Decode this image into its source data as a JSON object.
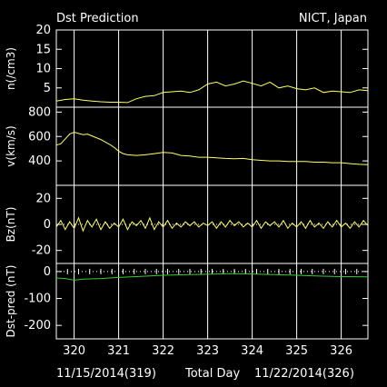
{
  "header": {
    "title": "Dst Prediction",
    "source": "NICT, Japan"
  },
  "footer": {
    "start_date": "11/15/2014(319)",
    "axis_label": "Total Day",
    "end_date": "11/22/2014(326)"
  },
  "colors": {
    "background": "#000000",
    "frame": "#ffffff",
    "data_line": "#ffff66",
    "dst_line": "#33cc33"
  },
  "chart_data": {
    "type": "line",
    "x_range": [
      319.6,
      326.6
    ],
    "x_ticks": [
      320,
      321,
      322,
      323,
      324,
      325,
      326
    ],
    "x_tick_labels": [
      "320",
      "321",
      "322",
      "323",
      "324",
      "325",
      "326"
    ],
    "x_label": "Total Day",
    "panels": [
      {
        "name": "density",
        "ylabel": "n(/cm3)",
        "ylim": [
          0,
          20
        ],
        "yticks": [
          5,
          10,
          15,
          20
        ],
        "series": [
          {
            "color": "#ffff66",
            "points": [
              [
                319.6,
                1.6
              ],
              [
                319.8,
                2.0
              ],
              [
                320.0,
                2.2
              ],
              [
                320.2,
                1.8
              ],
              [
                320.4,
                1.6
              ],
              [
                320.6,
                1.4
              ],
              [
                320.8,
                1.3
              ],
              [
                321.0,
                1.3
              ],
              [
                321.2,
                1.2
              ],
              [
                321.4,
                2.2
              ],
              [
                321.6,
                2.8
              ],
              [
                321.8,
                3.0
              ],
              [
                322.0,
                3.8
              ],
              [
                322.2,
                4.0
              ],
              [
                322.4,
                4.2
              ],
              [
                322.6,
                3.8
              ],
              [
                322.8,
                4.5
              ],
              [
                323.0,
                6.0
              ],
              [
                323.2,
                6.5
              ],
              [
                323.4,
                5.5
              ],
              [
                323.6,
                6.0
              ],
              [
                323.8,
                6.8
              ],
              [
                324.0,
                6.2
              ],
              [
                324.2,
                5.5
              ],
              [
                324.4,
                6.5
              ],
              [
                324.6,
                5.0
              ],
              [
                324.8,
                5.5
              ],
              [
                325.0,
                4.8
              ],
              [
                325.2,
                4.5
              ],
              [
                325.4,
                5.0
              ],
              [
                325.6,
                3.8
              ],
              [
                325.8,
                4.2
              ],
              [
                326.0,
                4.0
              ],
              [
                326.2,
                3.8
              ],
              [
                326.4,
                4.5
              ],
              [
                326.6,
                4.3
              ]
            ]
          }
        ]
      },
      {
        "name": "velocity",
        "ylabel": "v(km/s)",
        "ylim": [
          200,
          840
        ],
        "yticks": [
          400,
          600,
          800
        ],
        "series": [
          {
            "color": "#ffff66",
            "points": [
              [
                319.6,
                530
              ],
              [
                319.7,
                540
              ],
              [
                319.8,
                580
              ],
              [
                319.9,
                620
              ],
              [
                320.0,
                635
              ],
              [
                320.1,
                625
              ],
              [
                320.2,
                615
              ],
              [
                320.3,
                620
              ],
              [
                320.4,
                605
              ],
              [
                320.5,
                590
              ],
              [
                320.6,
                575
              ],
              [
                320.7,
                555
              ],
              [
                320.8,
                535
              ],
              [
                320.9,
                510
              ],
              [
                321.0,
                480
              ],
              [
                321.1,
                460
              ],
              [
                321.2,
                450
              ],
              [
                321.4,
                445
              ],
              [
                321.6,
                450
              ],
              [
                321.8,
                460
              ],
              [
                322.0,
                470
              ],
              [
                322.2,
                465
              ],
              [
                322.4,
                445
              ],
              [
                322.6,
                440
              ],
              [
                322.8,
                430
              ],
              [
                323.0,
                430
              ],
              [
                323.2,
                425
              ],
              [
                323.4,
                420
              ],
              [
                323.6,
                418
              ],
              [
                323.8,
                420
              ],
              [
                324.0,
                410
              ],
              [
                324.2,
                405
              ],
              [
                324.4,
                400
              ],
              [
                324.6,
                400
              ],
              [
                324.8,
                395
              ],
              [
                325.0,
                395
              ],
              [
                325.2,
                395
              ],
              [
                325.4,
                390
              ],
              [
                325.6,
                390
              ],
              [
                325.8,
                385
              ],
              [
                326.0,
                385
              ],
              [
                326.2,
                378
              ],
              [
                326.4,
                372
              ],
              [
                326.6,
                370
              ]
            ]
          }
        ]
      },
      {
        "name": "bz",
        "ylabel": "Bz(nT)",
        "ylim": [
          -30,
          30
        ],
        "yticks": [
          -20,
          0,
          20
        ],
        "series": [
          {
            "color": "#ffff66",
            "points": [
              [
                319.6,
                -2
              ],
              [
                319.7,
                3
              ],
              [
                319.8,
                -4
              ],
              [
                319.9,
                2
              ],
              [
                320.0,
                -3
              ],
              [
                320.1,
                5
              ],
              [
                320.2,
                -5
              ],
              [
                320.3,
                3
              ],
              [
                320.4,
                -2
              ],
              [
                320.5,
                4
              ],
              [
                320.6,
                -4
              ],
              [
                320.7,
                2
              ],
              [
                320.8,
                -3
              ],
              [
                320.9,
                1
              ],
              [
                321.0,
                -2
              ],
              [
                321.1,
                4
              ],
              [
                321.2,
                -4
              ],
              [
                321.3,
                2
              ],
              [
                321.4,
                -1
              ],
              [
                321.5,
                3
              ],
              [
                321.6,
                -3
              ],
              [
                321.7,
                5
              ],
              [
                321.8,
                -4
              ],
              [
                321.9,
                2
              ],
              [
                322.0,
                -2
              ],
              [
                322.1,
                3
              ],
              [
                322.2,
                -3
              ],
              [
                322.3,
                1
              ],
              [
                322.4,
                -2
              ],
              [
                322.5,
                2
              ],
              [
                322.6,
                -1
              ],
              [
                322.7,
                2
              ],
              [
                322.8,
                -2
              ],
              [
                322.9,
                1
              ],
              [
                323.0,
                -1
              ],
              [
                323.1,
                2
              ],
              [
                323.2,
                -3
              ],
              [
                323.3,
                2
              ],
              [
                323.4,
                -2
              ],
              [
                323.5,
                3
              ],
              [
                323.6,
                -1
              ],
              [
                323.7,
                2
              ],
              [
                323.8,
                -2
              ],
              [
                323.9,
                1
              ],
              [
                324.0,
                -2
              ],
              [
                324.1,
                3
              ],
              [
                324.2,
                -3
              ],
              [
                324.3,
                2
              ],
              [
                324.4,
                -1
              ],
              [
                324.5,
                2
              ],
              [
                324.6,
                -2
              ],
              [
                324.7,
                3
              ],
              [
                324.8,
                -3
              ],
              [
                324.9,
                1
              ],
              [
                325.0,
                -2
              ],
              [
                325.1,
                2
              ],
              [
                325.2,
                -3
              ],
              [
                325.3,
                3
              ],
              [
                325.4,
                -2
              ],
              [
                325.5,
                1
              ],
              [
                325.6,
                -3
              ],
              [
                325.7,
                2
              ],
              [
                325.8,
                -2
              ],
              [
                325.9,
                3
              ],
              [
                326.0,
                -2
              ],
              [
                326.1,
                1
              ],
              [
                326.2,
                -3
              ],
              [
                326.3,
                2
              ],
              [
                326.4,
                -2
              ],
              [
                326.5,
                3
              ],
              [
                326.6,
                -1
              ]
            ]
          }
        ]
      },
      {
        "name": "dst",
        "ylabel": "Dst-pred (nT)",
        "ylim": [
          -250,
          30
        ],
        "yticks": [
          -200,
          -100,
          0
        ],
        "series": [
          {
            "color": "#33cc33",
            "points": [
              [
                319.6,
                -24
              ],
              [
                319.8,
                -26
              ],
              [
                320.0,
                -32
              ],
              [
                320.2,
                -28
              ],
              [
                320.6,
                -26
              ],
              [
                321.0,
                -22
              ],
              [
                321.5,
                -18
              ],
              [
                322.0,
                -14
              ],
              [
                322.5,
                -12
              ],
              [
                323.0,
                -10
              ],
              [
                323.5,
                -8
              ],
              [
                324.0,
                -9
              ],
              [
                324.5,
                -11
              ],
              [
                325.0,
                -14
              ],
              [
                325.5,
                -17
              ],
              [
                326.0,
                -19
              ],
              [
                326.6,
                -20
              ]
            ]
          }
        ]
      }
    ]
  }
}
